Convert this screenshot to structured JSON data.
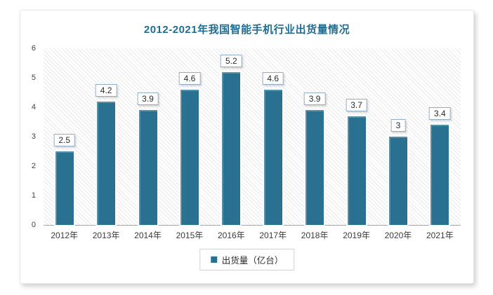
{
  "chart_data": {
    "type": "bar",
    "title": "2012-2021年我国智能手机行业出货量情况",
    "categories": [
      "2012年",
      "2013年",
      "2014年",
      "2015年",
      "2016年",
      "2017年",
      "2018年",
      "2019年",
      "2020年",
      "2021年"
    ],
    "values": [
      2.5,
      4.2,
      3.9,
      4.6,
      5.2,
      4.6,
      3.9,
      3.7,
      3,
      3.4
    ],
    "value_labels": [
      "2.5",
      "4.2",
      "3.9",
      "4.6",
      "5.2",
      "4.6",
      "3.9",
      "3.7",
      "3",
      "3.4"
    ],
    "series_name": "出货量（亿台）",
    "xlabel": "",
    "ylabel": "",
    "ylim": [
      0,
      6
    ],
    "y_ticks": [
      0,
      1,
      2,
      3,
      4,
      5,
      6
    ],
    "grid": false,
    "legend_position": "bottom",
    "plot_background": "diagonal-hatch-light-gray",
    "colors": {
      "bar": "#2a7191",
      "title": "#1f6d93",
      "axis_line": "#a6a6a6",
      "tick_text": "#404040",
      "label_box_border": "#94abc6"
    }
  }
}
